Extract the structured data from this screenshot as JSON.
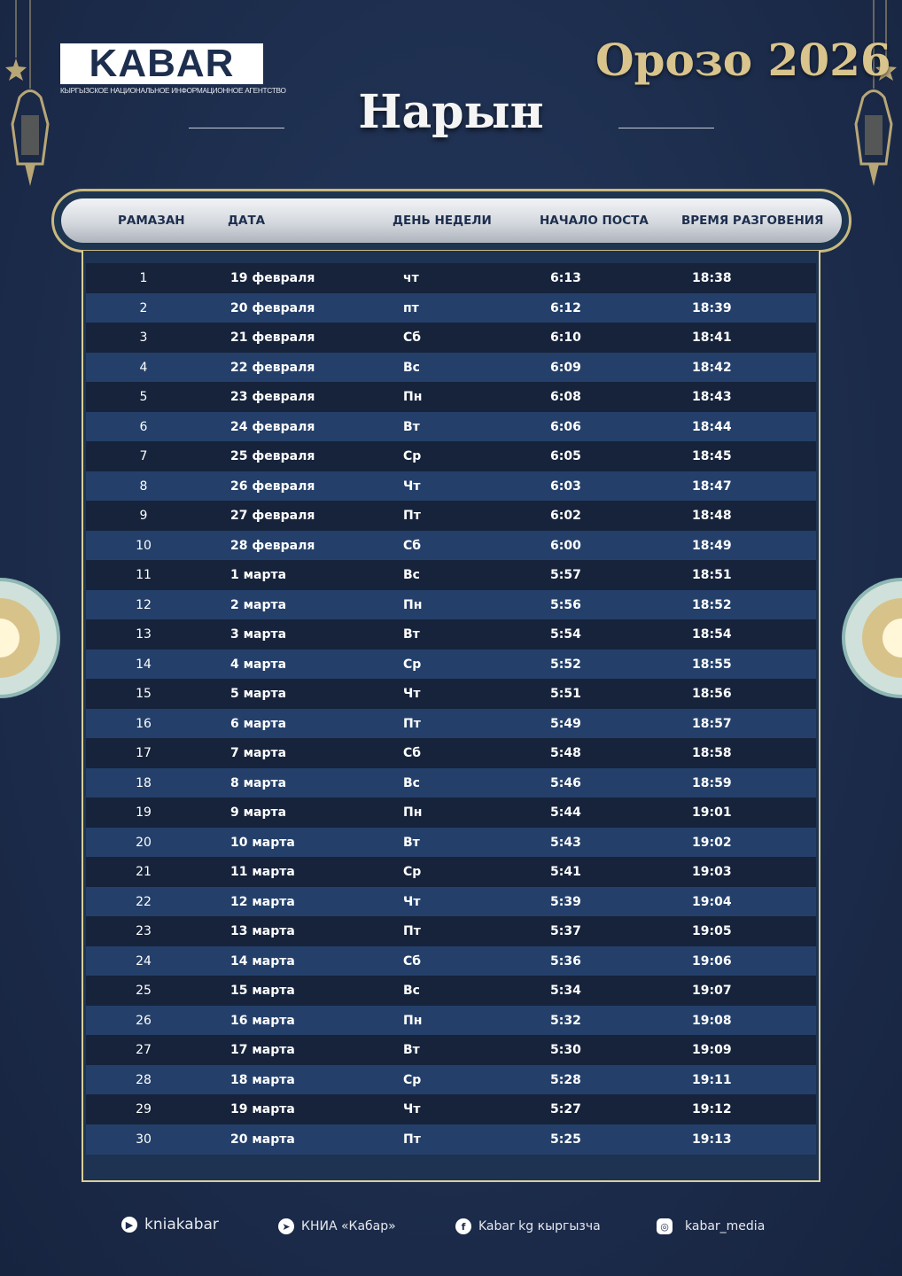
{
  "logo": {
    "name": "KABAR",
    "subtitle": "КЫРГЫЗСКОЕ НАЦИОНАЛЬНОЕ ИНФОРМАЦИОННОЕ АГЕНТСТВО"
  },
  "title": "Орозо 2026",
  "city": "Нарын",
  "headers": [
    "РАМАЗАН",
    "ДАТА",
    "ДЕНЬ НЕДЕЛИ",
    "НАЧАЛО ПОСТА",
    "ВРЕМЯ РАЗГОВЕНИЯ"
  ],
  "rows": [
    [
      "1",
      "19 февраля",
      "чт",
      "6:13",
      "18:38"
    ],
    [
      "2",
      "20 февраля",
      "пт",
      "6:12",
      "18:39"
    ],
    [
      "3",
      "21 февраля",
      "Сб",
      "6:10",
      "18:41"
    ],
    [
      "4",
      "22 февраля",
      "Вс",
      "6:09",
      "18:42"
    ],
    [
      "5",
      "23 февраля",
      "Пн",
      "6:08",
      "18:43"
    ],
    [
      "6",
      "24 февраля",
      "Вт",
      "6:06",
      "18:44"
    ],
    [
      "7",
      "25 февраля",
      "Ср",
      "6:05",
      "18:45"
    ],
    [
      "8",
      "26 февраля",
      "Чт",
      "6:03",
      "18:47"
    ],
    [
      "9",
      "27 февраля",
      "Пт",
      "6:02",
      "18:48"
    ],
    [
      "10",
      "28 февраля",
      "Сб",
      "6:00",
      "18:49"
    ],
    [
      "11",
      "1 марта",
      "Вс",
      "5:57",
      "18:51"
    ],
    [
      "12",
      "2 марта",
      "Пн",
      "5:56",
      "18:52"
    ],
    [
      "13",
      "3 марта",
      "Вт",
      "5:54",
      "18:54"
    ],
    [
      "14",
      "4 марта",
      "Ср",
      "5:52",
      "18:55"
    ],
    [
      "15",
      "5 марта",
      "Чт",
      "5:51",
      "18:56"
    ],
    [
      "16",
      "6 марта",
      "Пт",
      "5:49",
      "18:57"
    ],
    [
      "17",
      "7 марта",
      "Сб",
      "5:48",
      "18:58"
    ],
    [
      "18",
      "8 марта",
      "Вс",
      "5:46",
      "18:59"
    ],
    [
      "19",
      "9 марта",
      "Пн",
      "5:44",
      "19:01"
    ],
    [
      "20",
      "10 марта",
      "Вт",
      "5:43",
      "19:02"
    ],
    [
      "21",
      "11 марта",
      "Ср",
      "5:41",
      "19:03"
    ],
    [
      "22",
      "12 марта",
      "Чт",
      "5:39",
      "19:04"
    ],
    [
      "23",
      "13 марта",
      "Пт",
      "5:37",
      "19:05"
    ],
    [
      "24",
      "14 марта",
      "Сб",
      "5:36",
      "19:06"
    ],
    [
      "25",
      "15 марта",
      "Вс",
      "5:34",
      "19:07"
    ],
    [
      "26",
      "16 марта",
      "Пн",
      "5:32",
      "19:08"
    ],
    [
      "27",
      "17 марта",
      "Вт",
      "5:30",
      "19:09"
    ],
    [
      "28",
      "18 марта",
      "Ср",
      "5:28",
      "19:11"
    ],
    [
      "29",
      "19 марта",
      "Чт",
      "5:27",
      "19:12"
    ],
    [
      "30",
      "20 марта",
      "Пт",
      "5:25",
      "19:13"
    ]
  ],
  "footer": [
    {
      "icon": "youtube-icon",
      "label": "kniakabar"
    },
    {
      "icon": "telegram-icon",
      "label": "КНИА «Кабар»"
    },
    {
      "icon": "facebook-icon",
      "label": "Kabar kg кыргызча"
    },
    {
      "icon": "instagram-icon",
      "label": "kabar_media"
    }
  ],
  "colors": {
    "background": "#1d2e4e",
    "gold": "#d8c48c",
    "row_dark": "#16233b",
    "row_light": "#24406a"
  }
}
